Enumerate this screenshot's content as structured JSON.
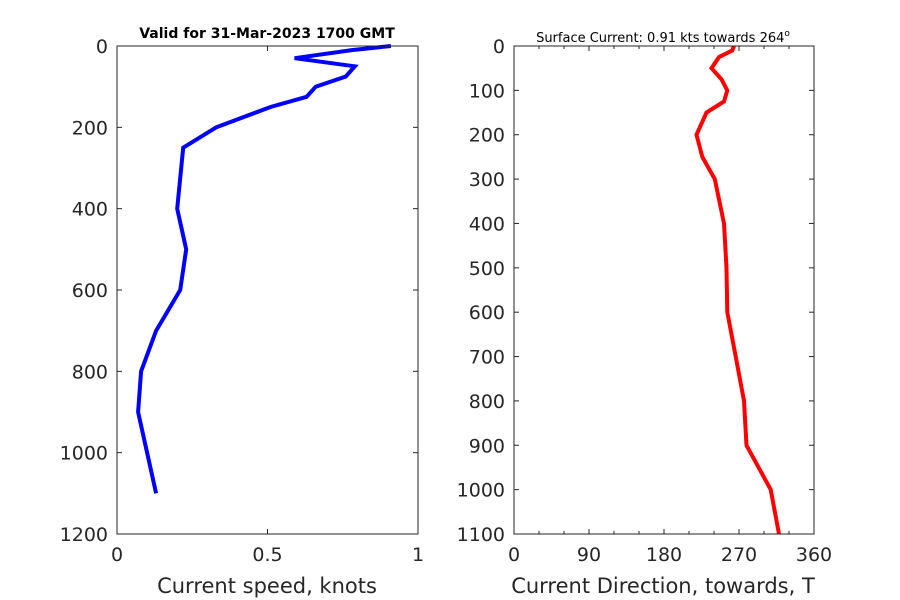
{
  "chart_data": [
    {
      "type": "line",
      "title": "Valid for 31-Mar-2023 1700 GMT",
      "xlabel": "Current speed, knots",
      "ylabel": "",
      "xlim": [
        0,
        1
      ],
      "ylim": [
        0,
        1200
      ],
      "y_reversed": true,
      "xticks": [
        0,
        0.5,
        1
      ],
      "xtick_labels": [
        "0",
        "0.5",
        "1"
      ],
      "yticks": [
        0,
        200,
        400,
        600,
        800,
        1000,
        1200
      ],
      "ytick_labels": [
        "0",
        "200",
        "400",
        "600",
        "800",
        "1000",
        "1200"
      ],
      "grid": false,
      "series": [
        {
          "color": "#0000ff",
          "x": [
            0.91,
            0.78,
            0.59,
            0.79,
            0.76,
            0.66,
            0.63,
            0.51,
            0.33,
            0.22,
            0.2,
            0.23,
            0.21,
            0.13,
            0.08,
            0.07,
            0.13
          ],
          "y": [
            0,
            10,
            30,
            50,
            75,
            100,
            125,
            150,
            200,
            250,
            400,
            500,
            600,
            700,
            800,
            900,
            1100
          ]
        }
      ]
    },
    {
      "type": "line",
      "title": "Surface Current: 0.91 kts towards 264",
      "title_superscript": "o",
      "xlabel": "Current Direction, towards, T",
      "ylabel": "",
      "xlim": [
        0,
        360
      ],
      "ylim": [
        0,
        1100
      ],
      "y_reversed": true,
      "xticks": [
        0,
        90,
        180,
        270,
        360
      ],
      "xtick_labels": [
        "0",
        "90",
        "180",
        "270",
        "360"
      ],
      "x_minor_ticks": [
        30,
        60,
        120,
        150,
        210,
        240,
        300,
        330
      ],
      "yticks": [
        0,
        100,
        200,
        300,
        400,
        500,
        600,
        700,
        800,
        900,
        1000,
        1100
      ],
      "ytick_labels": [
        "0",
        "100",
        "200",
        "300",
        "400",
        "500",
        "600",
        "700",
        "800",
        "900",
        "1000",
        "1100"
      ],
      "grid": false,
      "series": [
        {
          "color": "#ff0000",
          "x": [
            264,
            262,
            246,
            237,
            249,
            256,
            252,
            231,
            219,
            226,
            241,
            252,
            255,
            256,
            266,
            276,
            279,
            308,
            318
          ],
          "y": [
            0,
            10,
            25,
            50,
            75,
            100,
            125,
            150,
            200,
            250,
            300,
            400,
            500,
            600,
            700,
            800,
            900,
            1000,
            1100
          ]
        }
      ]
    }
  ]
}
